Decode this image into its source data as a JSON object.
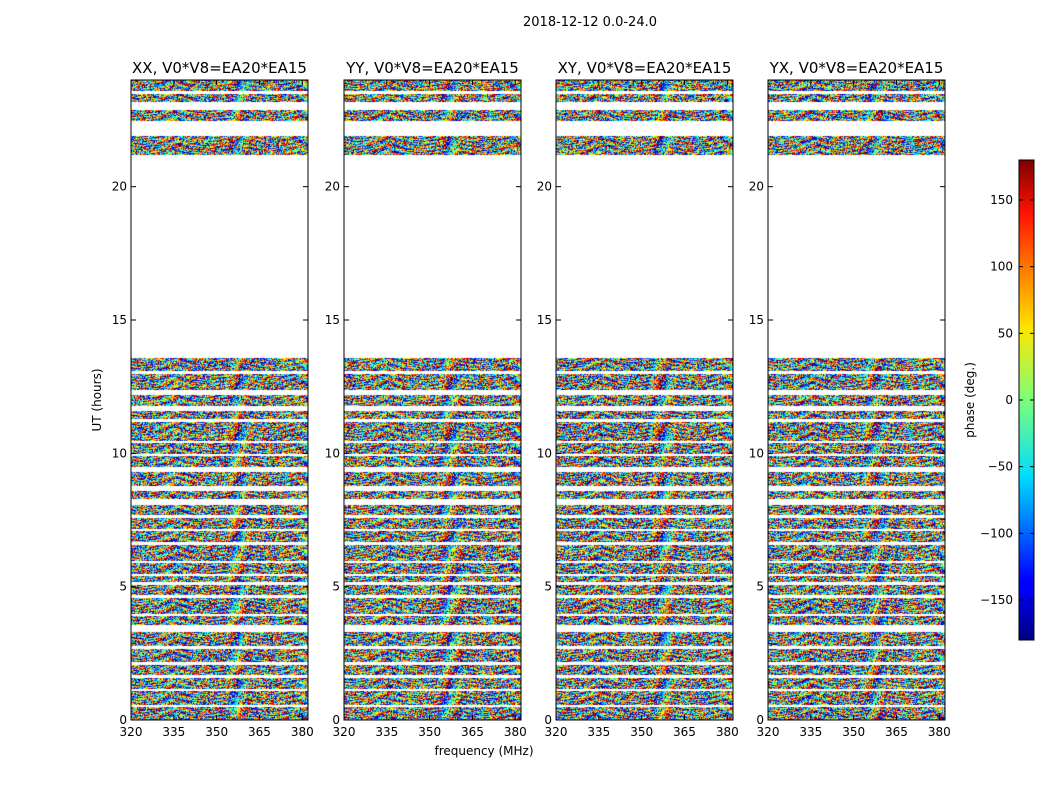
{
  "figure_title": "2018-12-12 0.0-24.0",
  "chart_data": {
    "type": "heatmap",
    "title": "2018-12-12 0.0-24.0",
    "xlabel": "frequency (MHz)",
    "ylabel": "UT (hours)",
    "xlim": [
      320,
      382
    ],
    "ylim": [
      0,
      24
    ],
    "x_ticks": [
      320,
      335,
      350,
      365,
      380
    ],
    "y_ticks": [
      0,
      5,
      10,
      15,
      20
    ],
    "panels": [
      {
        "title": "XX, V0*V8=EA20*EA15",
        "polarization": "XX"
      },
      {
        "title": "YY, V0*V8=EA20*EA15",
        "polarization": "YY"
      },
      {
        "title": "XY, V0*V8=EA20*EA15",
        "polarization": "XY"
      },
      {
        "title": "YX, V0*V8=EA20*EA15",
        "polarization": "YX"
      }
    ],
    "data_bands_hours": [
      [
        0.0,
        0.5
      ],
      [
        0.6,
        1.1
      ],
      [
        1.2,
        1.6
      ],
      [
        1.7,
        2.1
      ],
      [
        2.2,
        2.7
      ],
      [
        2.8,
        3.3
      ],
      [
        3.6,
        3.9
      ],
      [
        4.0,
        4.6
      ],
      [
        4.7,
        5.1
      ],
      [
        5.2,
        5.4
      ],
      [
        5.5,
        5.9
      ],
      [
        6.0,
        6.6
      ],
      [
        6.7,
        7.1
      ],
      [
        7.2,
        7.6
      ],
      [
        7.7,
        8.1
      ],
      [
        8.3,
        8.6
      ],
      [
        8.8,
        9.3
      ],
      [
        9.5,
        9.9
      ],
      [
        10.0,
        10.4
      ],
      [
        10.5,
        11.2
      ],
      [
        11.3,
        11.6
      ],
      [
        11.8,
        12.2
      ],
      [
        12.4,
        13.0
      ],
      [
        13.1,
        13.6
      ],
      [
        21.2,
        21.9
      ],
      [
        22.5,
        22.9
      ],
      [
        23.2,
        23.5
      ],
      [
        23.6,
        24.0
      ]
    ],
    "colorbar": {
      "label": "phase (deg.)",
      "range": [
        -180,
        180
      ],
      "ticks": [
        -150,
        -100,
        -50,
        0,
        50,
        100,
        150
      ],
      "tick_labels": [
        "−150",
        "−100",
        "−50",
        "0",
        "50",
        "100",
        "150"
      ],
      "colormap": "jet"
    }
  }
}
